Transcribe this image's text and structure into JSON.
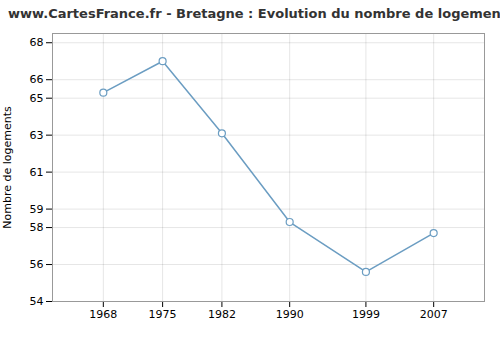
{
  "chart_data": {
    "type": "line",
    "title": "www.CartesFrance.fr - Bretagne : Evolution du nombre de logements",
    "ylabel": "Nombre de logements",
    "x": [
      1968,
      1975,
      1982,
      1990,
      1999,
      2007
    ],
    "values": [
      65.3,
      67.0,
      63.1,
      58.3,
      55.6,
      57.7
    ],
    "color": "#6b9dc2",
    "marker": "circle",
    "xlim": [
      1962,
      2013
    ],
    "ylim": [
      54,
      68.5
    ],
    "xticks": [
      1968,
      1975,
      1982,
      1990,
      1999,
      2007
    ],
    "yticks": [
      54,
      56,
      58,
      59,
      61,
      63,
      65,
      66,
      68
    ],
    "grid": true
  }
}
